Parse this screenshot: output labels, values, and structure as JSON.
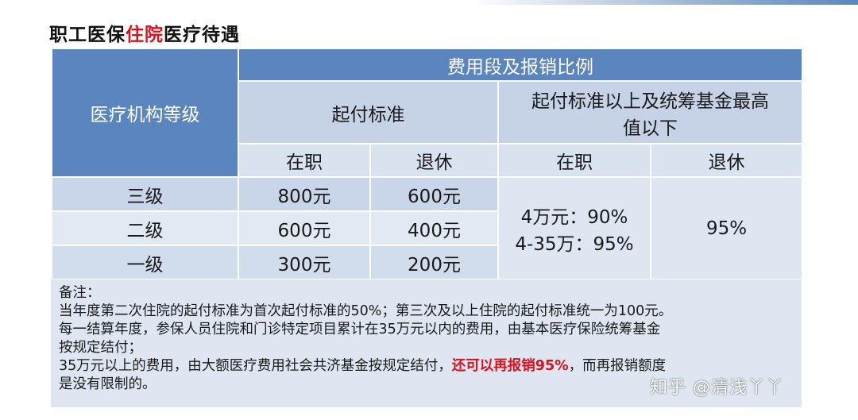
{
  "title": {
    "prefix": "职工医保",
    "highlight": "住院",
    "suffix": "医疗待遇"
  },
  "table": {
    "header_level": "医疗机构等级",
    "header_group": "费用段及报销比例",
    "header_start": "起付标准",
    "header_above_line1": "起付标准以上及统筹基金最高",
    "header_above_line2": "值以下",
    "sub_employed": "在职",
    "sub_retired": "退休",
    "rows": [
      {
        "level": "三级",
        "start_employed": "800元",
        "start_retired": "600元"
      },
      {
        "level": "二级",
        "start_employed": "600元",
        "start_retired": "400元"
      },
      {
        "level": "一级",
        "start_employed": "300元",
        "start_retired": "200元"
      }
    ],
    "above_employed_line1": "4万元：90%",
    "above_employed_line2": "4-35万：95%",
    "above_retired": "95%"
  },
  "notes": {
    "label": "备注：",
    "line1": "当年度第二次住院的起付标准为首次起付标准的50%；第三次及以上住院的起付标准统一为100元。",
    "line2": "每一结算年度，参保人员住院和门诊特定项目累计在35万元以内的费用，由基本医疗保险统筹基金",
    "line3": "按规定结付；",
    "line4_prefix": "35万元以上的费用，由大额医疗费用社会共济基金按规定结付，",
    "line4_red": "还可以再报销95%",
    "line4_suffix": "，而再报销额度",
    "line5": "是没有限制的。"
  },
  "watermark": "知乎 @清浅丫丫",
  "colors": {
    "header_blue": "#5b85bf",
    "highlight_red": "#d9121d",
    "light_blue": "#c6d3e6"
  }
}
